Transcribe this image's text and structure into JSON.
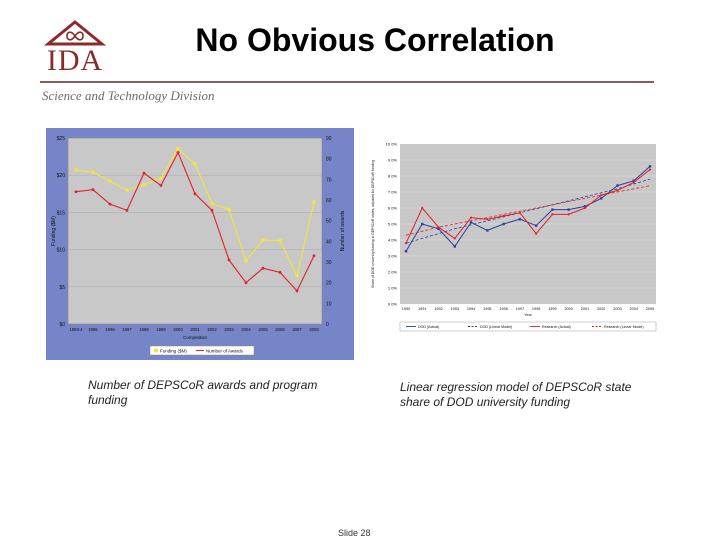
{
  "logo": {
    "text": "IDA",
    "icon": "infinity-icon"
  },
  "header": {
    "title": "No Obvious Correlation",
    "division": "Science and Technology Division"
  },
  "captions": {
    "left": "Number of DEPSCoR awards and program funding",
    "right": "Linear regression model of DEPSCoR state share of DOD university funding"
  },
  "footer": {
    "slide": "Slide 28"
  },
  "chart_data": [
    {
      "type": "line",
      "title": "",
      "categories": [
        "1993-4",
        "1995",
        "1996",
        "1997",
        "1998",
        "1999",
        "2000",
        "2001",
        "2002",
        "2003",
        "2004",
        "2005",
        "2006",
        "2007",
        "2008"
      ],
      "xlabel": "Competition",
      "ylabel": "Funding ($M)",
      "y2label": "Number of awards",
      "ylim": [
        0,
        25
      ],
      "y2lim": [
        0,
        90
      ],
      "yticks": [
        "$0",
        "$5",
        "$10",
        "$15",
        "$20",
        "$25"
      ],
      "y2ticks": [
        "0",
        "10",
        "20",
        "30",
        "40",
        "50",
        "60",
        "70",
        "80",
        "90"
      ],
      "legend_position": "bottom",
      "grid": true,
      "colors": {
        "background": "#7585c7",
        "plot": "#c8c8c8",
        "funding": "#f5e63a",
        "awards": "#e0202a"
      },
      "series": [
        {
          "name": "Funding ($M)",
          "axis": "left",
          "values": [
            20.7,
            20.4,
            19.2,
            18.0,
            18.7,
            19.6,
            23.6,
            21.5,
            16.2,
            15.4,
            8.5,
            11.3,
            11.2,
            6.5,
            16.4
          ]
        },
        {
          "name": "Number of Awards",
          "axis": "right",
          "values": [
            64,
            65,
            58,
            55,
            73,
            67,
            83,
            63,
            55,
            31,
            20,
            27,
            25,
            16,
            33
          ]
        }
      ]
    },
    {
      "type": "line",
      "title": "",
      "categories": [
        "1990",
        "1991",
        "1992",
        "1993",
        "1994",
        "1995",
        "1996",
        "1997",
        "1998",
        "1999",
        "2000",
        "2001",
        "2002",
        "2003",
        "2004",
        "2005"
      ],
      "xlabel": "Year",
      "ylabel": "Share of DOD university funding to DEPSCoR states, adjusted for DEPSCoR funding",
      "ylim": [
        0,
        10
      ],
      "yticks": [
        "0.0%",
        "1.0%",
        "2.0%",
        "3.0%",
        "4.0%",
        "5.0%",
        "6.0%",
        "7.0%",
        "8.0%",
        "9.0%",
        "10.0%"
      ],
      "legend_position": "bottom",
      "grid": true,
      "colors": {
        "plot": "#c8c8c8",
        "dod": "#2b3fa0",
        "dod_fit": "#2b3fa0",
        "research": "#e0202a",
        "research_fit": "#e0202a"
      },
      "series": [
        {
          "name": "DOD (Actual)",
          "values": [
            3.3,
            5.0,
            4.7,
            3.6,
            5.1,
            4.6,
            5.0,
            5.3,
            4.9,
            5.9,
            5.9,
            6.1,
            6.6,
            7.4,
            7.7,
            8.6
          ]
        },
        {
          "name": "DOD (Linear Model)",
          "style": "dashed",
          "values": [
            3.8,
            4.1,
            4.4,
            4.7,
            4.95,
            5.2,
            5.45,
            5.7,
            5.95,
            6.2,
            6.45,
            6.7,
            6.95,
            7.2,
            7.5,
            7.8
          ]
        },
        {
          "name": "Research (Actual)",
          "values": [
            3.8,
            6.0,
            4.8,
            4.1,
            5.4,
            5.3,
            5.5,
            5.7,
            4.4,
            5.6,
            5.6,
            6.0,
            6.8,
            7.1,
            7.6,
            8.4
          ]
        },
        {
          "name": "Research (Linear Model)",
          "style": "dashed",
          "values": [
            4.3,
            4.55,
            4.8,
            5.0,
            5.2,
            5.4,
            5.6,
            5.8,
            6.0,
            6.2,
            6.4,
            6.6,
            6.8,
            7.0,
            7.2,
            7.4
          ]
        }
      ]
    }
  ]
}
